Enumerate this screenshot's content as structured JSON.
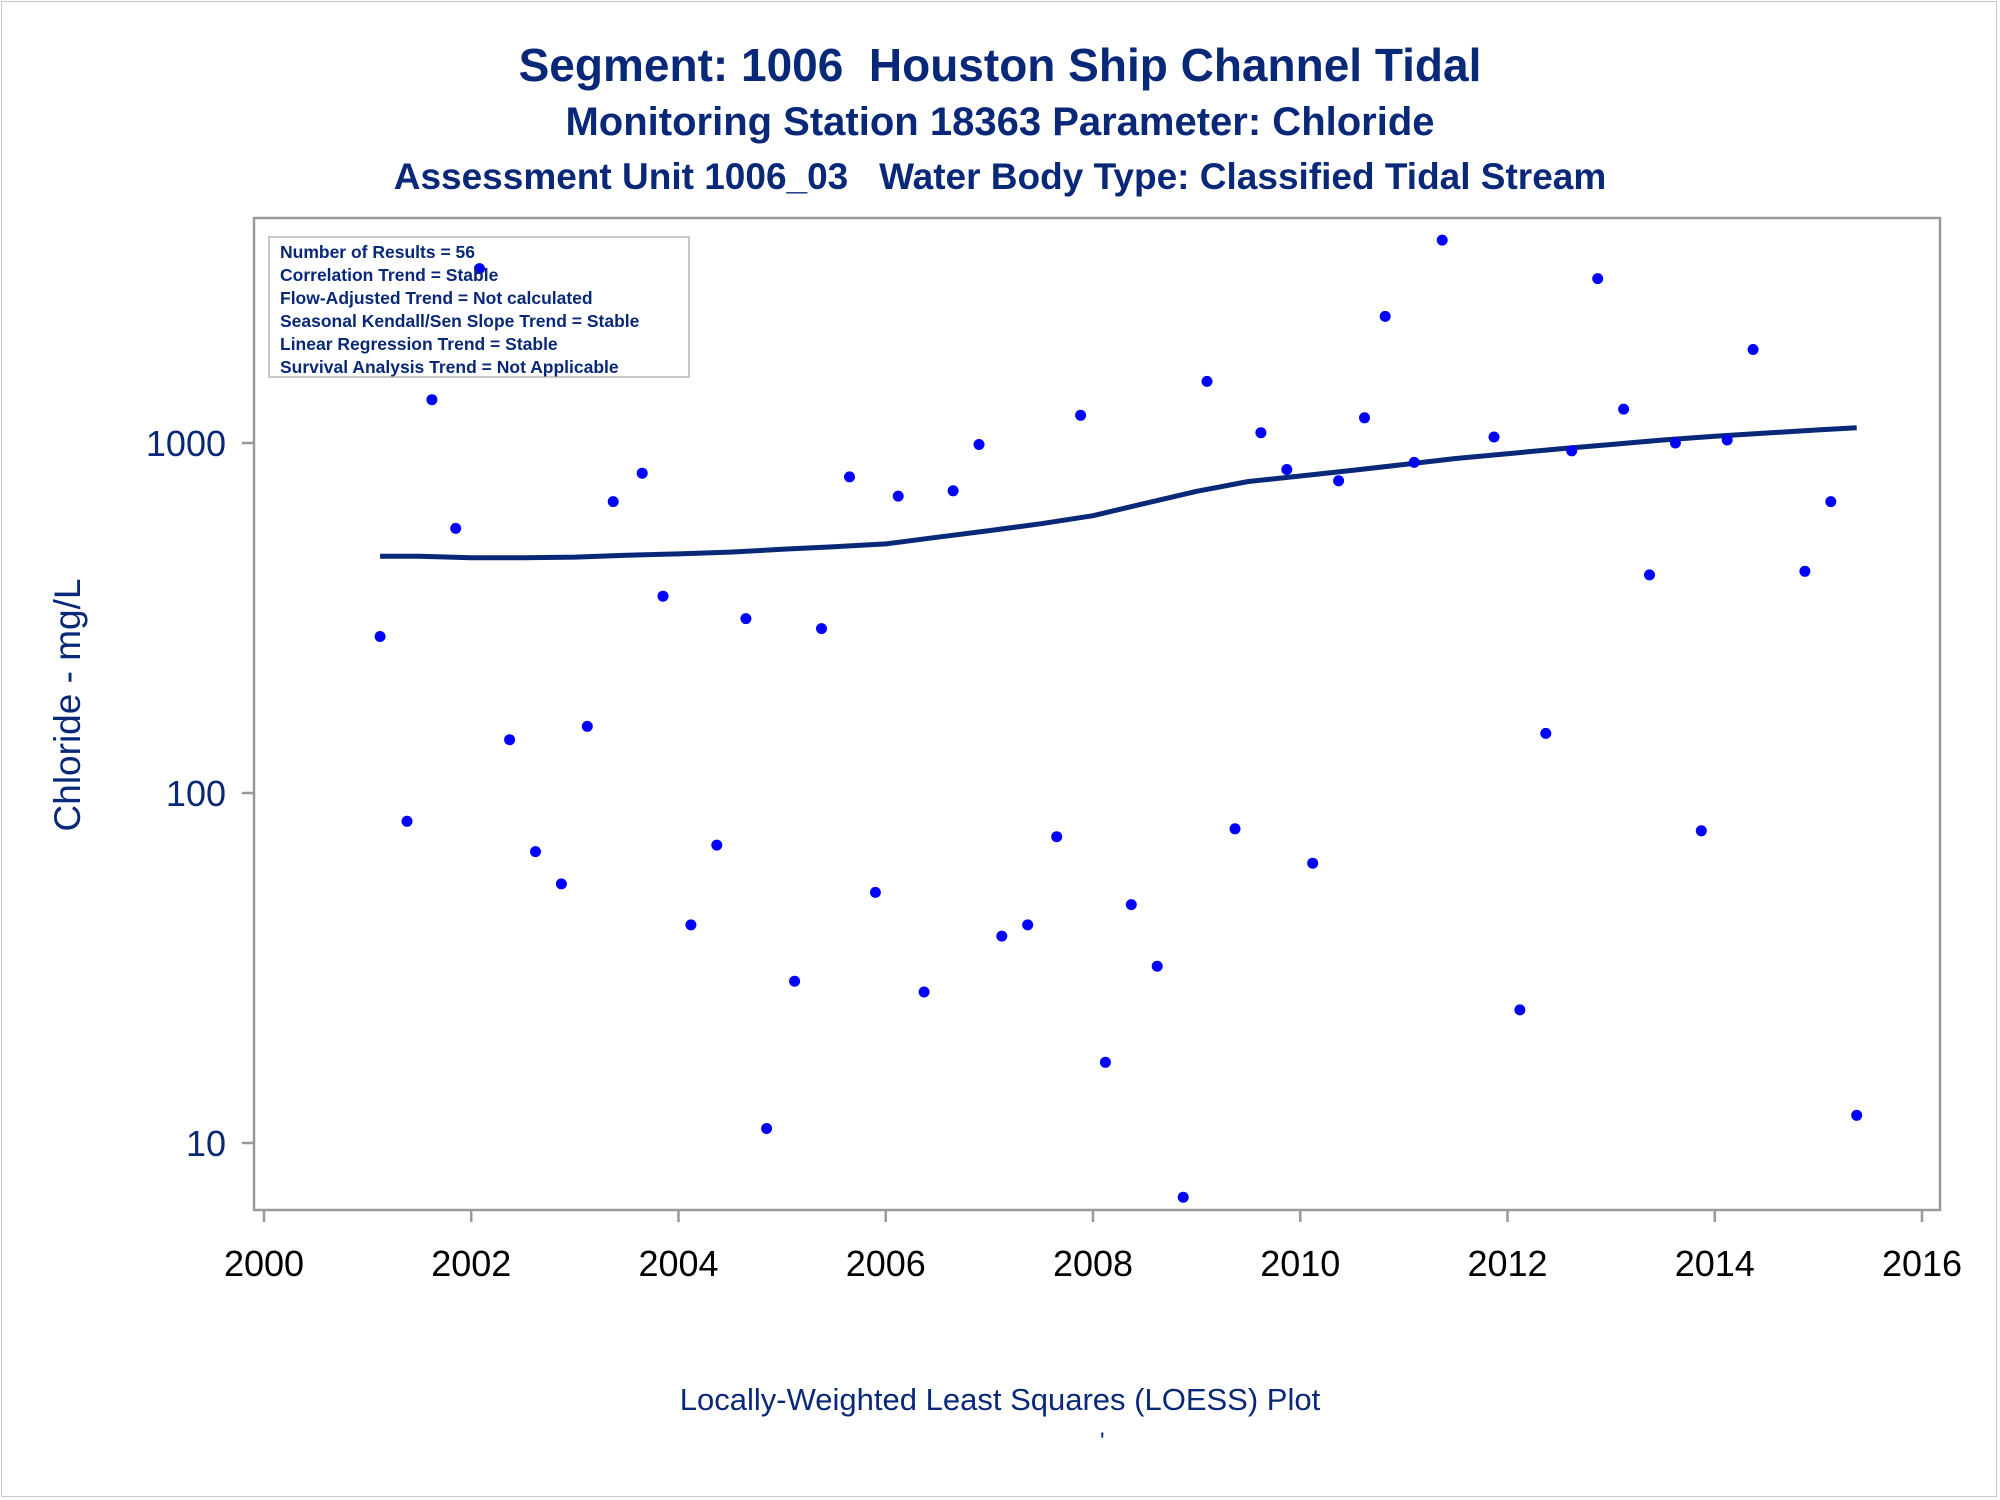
{
  "titles": {
    "line1": "Segment: 1006  Houston Ship Channel Tidal",
    "line2": "Monitoring Station 18363 Parameter: Chloride",
    "line3": "Assessment Unit 1006_03   Water Body Type: Classified Tidal Stream"
  },
  "info_box": [
    "Number of Results = 56",
    "Correlation Trend = Stable",
    "Flow-Adjusted Trend = Not calculated",
    "Seasonal Kendall/Sen Slope Trend = Stable",
    "Linear Regression Trend = Stable",
    "Survival Analysis Trend = Not Applicable"
  ],
  "footnote": "Locally-Weighted Least Squares (LOESS) Plot",
  "footnote_mark": "'",
  "colors": {
    "text": "#0a2878",
    "points": "#0000ff",
    "loess": "#0a2878",
    "frame": "#999999"
  },
  "chart_data": {
    "type": "scatter",
    "title": "Segment: 1006  Houston Ship Channel Tidal",
    "xlabel": "",
    "ylabel": "Chloride - mg/L",
    "yscale": "log",
    "xlim": [
      2000,
      2016
    ],
    "ylim": [
      7,
      4000
    ],
    "x_ticks": [
      2000,
      2002,
      2004,
      2006,
      2008,
      2010,
      2012,
      2014,
      2016
    ],
    "y_ticks": [
      10,
      100,
      1000
    ],
    "grid": false,
    "points": {
      "x": [
        2001.12,
        2001.38,
        2001.62,
        2001.85,
        2002.08,
        2002.37,
        2002.62,
        2002.87,
        2003.12,
        2003.37,
        2003.65,
        2003.85,
        2004.12,
        2004.37,
        2004.65,
        2004.85,
        2005.12,
        2005.38,
        2005.65,
        2005.9,
        2006.12,
        2006.37,
        2006.65,
        2006.9,
        2007.12,
        2007.37,
        2007.65,
        2007.88,
        2008.12,
        2008.37,
        2008.62,
        2008.87,
        2009.1,
        2009.37,
        2009.62,
        2009.87,
        2010.12,
        2010.37,
        2010.62,
        2010.82,
        2011.1,
        2011.37,
        2011.87,
        2012.12,
        2012.37,
        2012.62,
        2012.87,
        2013.12,
        2013.37,
        2013.62,
        2013.87,
        2014.12,
        2014.37,
        2014.87,
        2015.12,
        2015.37
      ],
      "y": [
        280,
        83,
        1330,
        570,
        3150,
        142,
        68,
        55,
        155,
        680,
        820,
        365,
        42,
        71,
        315,
        11,
        29,
        295,
        800,
        52,
        705,
        27,
        730,
        990,
        39,
        42,
        75,
        1200,
        17,
        48,
        32,
        7,
        1500,
        79,
        1070,
        840,
        63,
        780,
        1180,
        2300,
        880,
        3800,
        1040,
        24,
        148,
        950,
        2950,
        1250,
        420,
        1000,
        78,
        1020,
        1850,
        430,
        680,
        12
      ]
    },
    "series": [
      {
        "type": "line",
        "x": [
          2001.12,
          2001.5,
          2002.0,
          2002.5,
          2003.0,
          2003.5,
          2004.0,
          2004.5,
          2005.0,
          2005.5,
          2006.0,
          2006.5,
          2007.0,
          2007.5,
          2008.0,
          2008.5,
          2009.0,
          2009.5,
          2010.0,
          2010.5,
          2011.0,
          2011.5,
          2012.0,
          2012.5,
          2013.0,
          2013.5,
          2014.0,
          2014.5,
          2015.0,
          2015.37
        ],
        "y": [
          475,
          475,
          470,
          470,
          472,
          478,
          482,
          488,
          497,
          505,
          515,
          538,
          562,
          588,
          620,
          672,
          728,
          776,
          805,
          835,
          868,
          903,
          932,
          962,
          990,
          1020,
          1045,
          1068,
          1090,
          1105
        ]
      }
    ]
  }
}
